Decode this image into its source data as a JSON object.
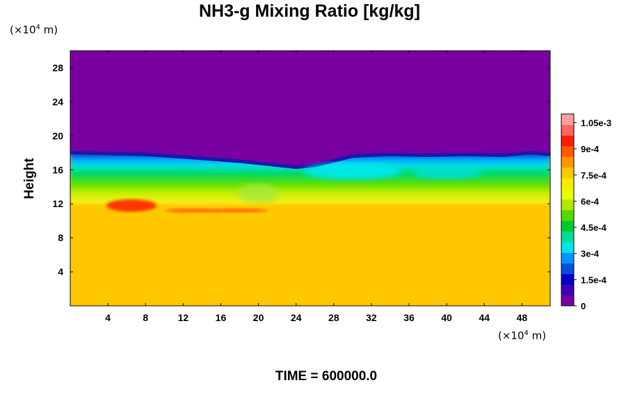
{
  "chart_data": {
    "type": "heatmap",
    "title": "NH3-g Mixing Ratio [kg/kg]",
    "ylabel": "Height",
    "xlabel": "",
    "x_unit_prefix": "(×10",
    "x_unit_exp": "4",
    "x_unit_suffix": " m)",
    "y_unit_prefix": "(×10",
    "y_unit_exp": "4",
    "y_unit_suffix": " m)",
    "xlim": [
      0,
      51
    ],
    "ylim": [
      0,
      30
    ],
    "x_ticks": [
      4,
      8,
      12,
      16,
      20,
      24,
      28,
      32,
      36,
      40,
      44,
      48
    ],
    "x_tick_labels": [
      "4",
      "8",
      "12",
      "16",
      "20",
      "24",
      "28",
      "32",
      "36",
      "40",
      "44",
      "48"
    ],
    "y_ticks": [
      4,
      8,
      12,
      16,
      20,
      24,
      28
    ],
    "y_tick_labels": [
      "4",
      "8",
      "12",
      "16",
      "20",
      "24",
      "28"
    ],
    "colorbar": {
      "min": 0,
      "max": 0.0011,
      "ticks": [
        0,
        0.00015,
        0.0003,
        0.00045,
        0.0006,
        0.00075,
        0.0009,
        0.00105
      ],
      "tick_labels": [
        "0",
        "1.5e-4",
        "3e-4",
        "4.5e-4",
        "6e-4",
        "7.5e-4",
        "9e-4",
        "1.05e-3"
      ],
      "colors": [
        "#7800a0",
        "#3c00b4",
        "#0000c8",
        "#0050dc",
        "#0096ff",
        "#00e6e6",
        "#00dc96",
        "#00c832",
        "#50dc00",
        "#b4e600",
        "#e6ff00",
        "#ffeb00",
        "#ffc800",
        "#ff9600",
        "#ff5a00",
        "#ff1e00",
        "#ff6464",
        "#ffa0a0"
      ]
    },
    "fields": {
      "upper_value": 0,
      "lower_value": 0.00078,
      "top_boundary_height": [
        18.0,
        17.9,
        17.8,
        17.5,
        17.0,
        16.3,
        16.5,
        17.6,
        17.8,
        17.7,
        17.8,
        17.7,
        18.0,
        17.8
      ],
      "top_boundary_x": [
        0,
        4,
        8,
        12,
        18,
        24,
        26,
        30,
        34,
        38,
        42,
        46,
        49,
        51
      ],
      "band_values": [
        {
          "height": 17.3,
          "value": 0.00018
        },
        {
          "height": 16.6,
          "value": 0.00032
        },
        {
          "height": 15.5,
          "value": 0.0005
        },
        {
          "height": 14.4,
          "value": 0.00062
        },
        {
          "height": 13.2,
          "value": 0.0007
        },
        {
          "height": 12.2,
          "value": 0.0008
        }
      ],
      "high_values": [
        {
          "x": 6.5,
          "y": 11.8,
          "value": 0.00092
        },
        {
          "x": 13,
          "y": 11.2,
          "value": 0.00088
        },
        {
          "x": 18,
          "y": 11.2,
          "value": 0.00086
        }
      ]
    },
    "time_label": "TIME = 600000.0"
  }
}
